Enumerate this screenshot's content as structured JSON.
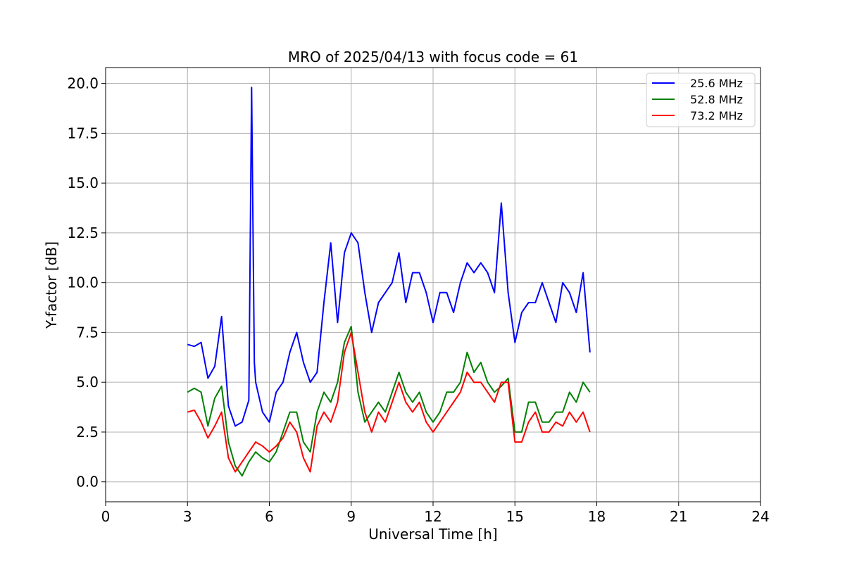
{
  "chart_data": {
    "type": "line",
    "title": "MRO of 2025/04/13 with focus code = 61",
    "xlabel": "Universal Time [h]",
    "ylabel": "Y-factor [dB]",
    "xlim": [
      0,
      24
    ],
    "ylim": [
      -1.0,
      20.8
    ],
    "xticks": [
      0,
      3,
      6,
      9,
      12,
      15,
      18,
      21,
      24
    ],
    "yticks": [
      0.0,
      2.5,
      5.0,
      7.5,
      10.0,
      12.5,
      15.0,
      17.5,
      20.0
    ],
    "xtick_labels": [
      "0",
      "3",
      "6",
      "9",
      "12",
      "15",
      "18",
      "21",
      "24"
    ],
    "ytick_labels": [
      "0.0",
      "2.5",
      "5.0",
      "7.5",
      "10.0",
      "12.5",
      "15.0",
      "17.5",
      "20.0"
    ],
    "grid": true,
    "legend_position": "top-right",
    "series": [
      {
        "name": "25.6 MHz",
        "color": "#0000ff",
        "x": [
          3.0,
          3.25,
          3.5,
          3.75,
          4.0,
          4.25,
          4.5,
          4.75,
          5.0,
          5.25,
          5.35,
          5.45,
          5.5,
          5.75,
          6.0,
          6.25,
          6.5,
          6.75,
          7.0,
          7.25,
          7.5,
          7.75,
          8.0,
          8.25,
          8.5,
          8.75,
          9.0,
          9.25,
          9.5,
          9.75,
          10.0,
          10.25,
          10.5,
          10.75,
          11.0,
          11.25,
          11.5,
          11.75,
          12.0,
          12.25,
          12.5,
          12.75,
          13.0,
          13.25,
          13.5,
          13.75,
          14.0,
          14.25,
          14.5,
          14.75,
          15.0,
          15.25,
          15.5,
          15.75,
          16.0,
          16.25,
          16.5,
          16.75,
          17.0,
          17.25,
          17.5,
          17.75
        ],
        "y": [
          6.9,
          6.8,
          7.0,
          5.2,
          5.8,
          8.3,
          3.8,
          2.8,
          3.0,
          4.1,
          19.8,
          6.0,
          5.0,
          3.5,
          3.0,
          4.5,
          5.0,
          6.5,
          7.5,
          6.0,
          5.0,
          5.5,
          9.0,
          12.0,
          8.0,
          11.5,
          12.5,
          12.0,
          9.5,
          7.5,
          9.0,
          9.5,
          10.0,
          11.5,
          9.0,
          10.5,
          10.5,
          9.5,
          8.0,
          9.5,
          9.5,
          8.5,
          10.0,
          11.0,
          10.5,
          11.0,
          10.5,
          9.5,
          14.0,
          9.5,
          7.0,
          8.5,
          9.0,
          9.0,
          10.0,
          9.0,
          8.0,
          10.0,
          9.5,
          8.5,
          10.5,
          6.5
        ]
      },
      {
        "name": "52.8 MHz",
        "color": "#008000",
        "x": [
          3.0,
          3.25,
          3.5,
          3.75,
          4.0,
          4.25,
          4.5,
          4.75,
          5.0,
          5.25,
          5.5,
          5.75,
          6.0,
          6.25,
          6.5,
          6.75,
          7.0,
          7.25,
          7.5,
          7.75,
          8.0,
          8.25,
          8.5,
          8.75,
          9.0,
          9.25,
          9.5,
          9.75,
          10.0,
          10.25,
          10.5,
          10.75,
          11.0,
          11.25,
          11.5,
          11.75,
          12.0,
          12.25,
          12.5,
          12.75,
          13.0,
          13.25,
          13.5,
          13.75,
          14.0,
          14.25,
          14.5,
          14.75,
          15.0,
          15.25,
          15.5,
          15.75,
          16.0,
          16.25,
          16.5,
          16.75,
          17.0,
          17.25,
          17.5,
          17.75
        ],
        "y": [
          4.5,
          4.7,
          4.5,
          2.8,
          4.2,
          4.8,
          2.0,
          0.8,
          0.3,
          1.0,
          1.5,
          1.2,
          1.0,
          1.5,
          2.5,
          3.5,
          3.5,
          2.0,
          1.5,
          3.5,
          4.5,
          4.0,
          5.0,
          7.0,
          7.8,
          4.5,
          3.0,
          3.5,
          4.0,
          3.5,
          4.5,
          5.5,
          4.5,
          4.0,
          4.5,
          3.5,
          3.0,
          3.5,
          4.5,
          4.5,
          5.0,
          6.5,
          5.5,
          6.0,
          5.0,
          4.5,
          4.8,
          5.2,
          2.5,
          2.5,
          4.0,
          4.0,
          3.0,
          3.0,
          3.5,
          3.5,
          4.5,
          4.0,
          5.0,
          4.5
        ]
      },
      {
        "name": "73.2 MHz",
        "color": "#ff0000",
        "x": [
          3.0,
          3.25,
          3.5,
          3.75,
          4.0,
          4.25,
          4.5,
          4.75,
          5.0,
          5.25,
          5.5,
          5.75,
          6.0,
          6.25,
          6.5,
          6.75,
          7.0,
          7.25,
          7.5,
          7.75,
          8.0,
          8.25,
          8.5,
          8.75,
          9.0,
          9.25,
          9.5,
          9.75,
          10.0,
          10.25,
          10.5,
          10.75,
          11.0,
          11.25,
          11.5,
          11.75,
          12.0,
          12.25,
          12.5,
          12.75,
          13.0,
          13.25,
          13.5,
          13.75,
          14.0,
          14.25,
          14.5,
          14.75,
          15.0,
          15.25,
          15.5,
          15.75,
          16.0,
          16.25,
          16.5,
          16.75,
          17.0,
          17.25,
          17.5,
          17.75
        ],
        "y": [
          3.5,
          3.6,
          3.0,
          2.2,
          2.8,
          3.5,
          1.2,
          0.5,
          1.0,
          1.5,
          2.0,
          1.8,
          1.5,
          1.8,
          2.2,
          3.0,
          2.5,
          1.2,
          0.5,
          2.8,
          3.5,
          3.0,
          4.0,
          6.5,
          7.5,
          5.5,
          3.5,
          2.5,
          3.5,
          3.0,
          4.0,
          5.0,
          4.0,
          3.5,
          4.0,
          3.0,
          2.5,
          3.0,
          3.5,
          4.0,
          4.5,
          5.5,
          5.0,
          5.0,
          4.5,
          4.0,
          5.0,
          5.0,
          2.0,
          2.0,
          3.0,
          3.5,
          2.5,
          2.5,
          3.0,
          2.8,
          3.5,
          3.0,
          3.5,
          2.5
        ]
      }
    ]
  }
}
